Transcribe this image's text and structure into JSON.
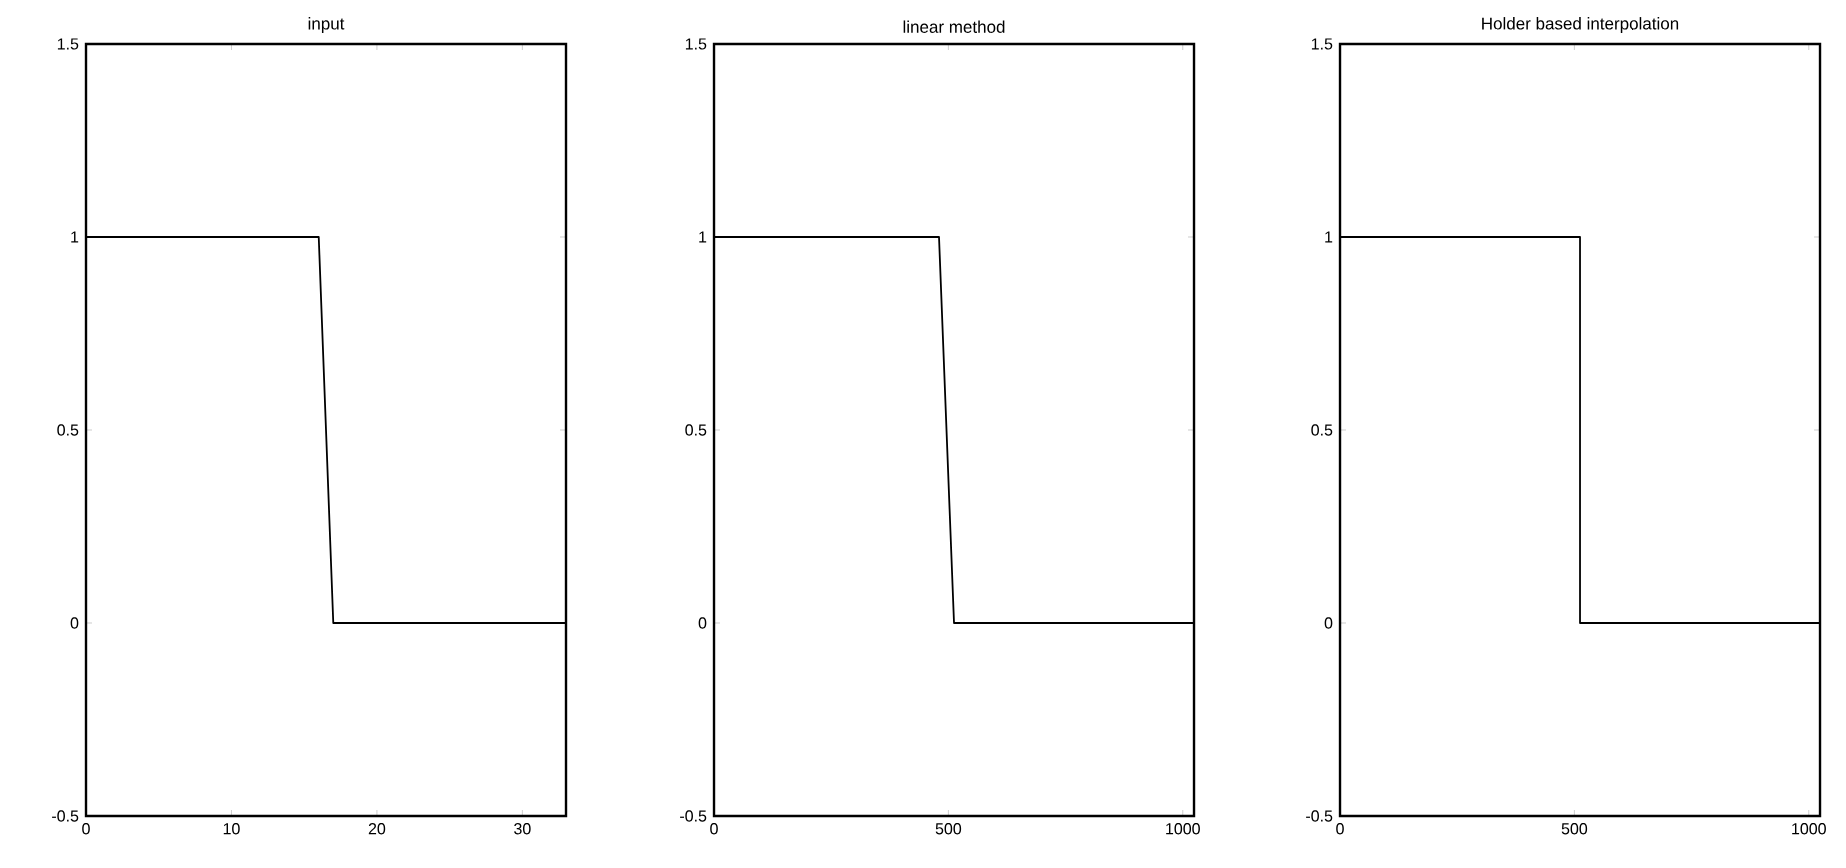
{
  "chart_data": [
    {
      "type": "line",
      "title": "input",
      "color": "#000000",
      "x": [
        0,
        16,
        17,
        33
      ],
      "values": [
        1,
        1,
        0,
        0
      ],
      "xlim": [
        0,
        33
      ],
      "xticks": [
        0,
        10,
        20,
        30
      ],
      "ylim": [
        -0.5,
        1.5
      ],
      "yticks": [
        -0.5,
        0,
        0.5,
        1,
        1.5
      ]
    },
    {
      "type": "line",
      "title": "linear method",
      "color": "#000000",
      "x": [
        0,
        480,
        512,
        1024
      ],
      "values": [
        1,
        1,
        0,
        0
      ],
      "xlim": [
        0,
        1024
      ],
      "xticks": [
        0,
        500,
        1000
      ],
      "ylim": [
        -0.5,
        1.5
      ],
      "yticks": [
        -0.5,
        0,
        0.5,
        1,
        1.5
      ]
    },
    {
      "type": "line",
      "title": "Holder based interpolation",
      "color": "#000000",
      "x": [
        0,
        512,
        512,
        1024
      ],
      "values": [
        1,
        1,
        0,
        0
      ],
      "xlim": [
        0,
        1024
      ],
      "xticks": [
        0,
        500,
        1000
      ],
      "ylim": [
        -0.5,
        1.5
      ],
      "yticks": [
        -0.5,
        0,
        0.5,
        1,
        1.5
      ]
    }
  ]
}
